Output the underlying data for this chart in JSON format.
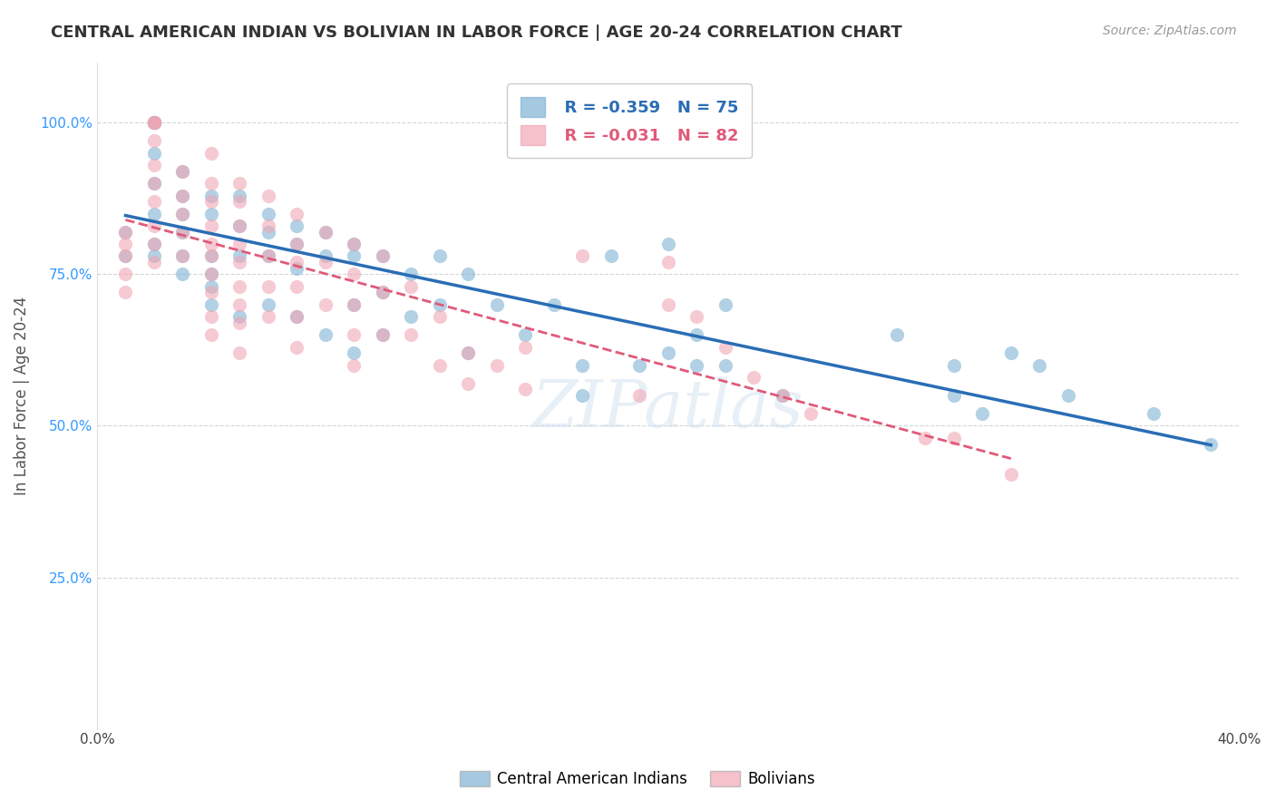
{
  "title": "CENTRAL AMERICAN INDIAN VS BOLIVIAN IN LABOR FORCE | AGE 20-24 CORRELATION CHART",
  "source": "Source: ZipAtlas.com",
  "xlabel": "",
  "ylabel": "In Labor Force | Age 20-24",
  "xlim": [
    0.0,
    0.4
  ],
  "ylim": [
    0.0,
    1.1
  ],
  "ytick_labels": [
    "",
    "25.0%",
    "50.0%",
    "75.0%",
    "100.0%"
  ],
  "ytick_values": [
    0.0,
    0.25,
    0.5,
    0.75,
    1.0
  ],
  "xtick_labels": [
    "0.0%",
    "",
    "",
    "",
    "",
    "40.0%"
  ],
  "xtick_values": [
    0.0,
    0.08,
    0.16,
    0.24,
    0.32,
    0.4
  ],
  "grid_color": "#cccccc",
  "background_color": "#ffffff",
  "blue_color": "#7fb3d3",
  "pink_color": "#f1a7b5",
  "blue_line_color": "#2a6db5",
  "pink_line_color": "#e05a7a",
  "legend_r_blue": "-0.359",
  "legend_n_blue": "75",
  "legend_r_pink": "-0.031",
  "legend_n_pink": "82",
  "watermark": "ZIPatlas",
  "blue_scatter_x": [
    0.01,
    0.01,
    0.02,
    0.02,
    0.02,
    0.02,
    0.02,
    0.02,
    0.02,
    0.02,
    0.02,
    0.02,
    0.03,
    0.03,
    0.03,
    0.03,
    0.03,
    0.03,
    0.04,
    0.04,
    0.04,
    0.04,
    0.04,
    0.04,
    0.05,
    0.05,
    0.05,
    0.05,
    0.06,
    0.06,
    0.06,
    0.06,
    0.07,
    0.07,
    0.07,
    0.07,
    0.08,
    0.08,
    0.08,
    0.09,
    0.09,
    0.09,
    0.09,
    0.1,
    0.1,
    0.1,
    0.11,
    0.11,
    0.12,
    0.12,
    0.13,
    0.13,
    0.14,
    0.15,
    0.16,
    0.17,
    0.17,
    0.18,
    0.19,
    0.2,
    0.2,
    0.21,
    0.21,
    0.22,
    0.22,
    0.24,
    0.28,
    0.3,
    0.3,
    0.31,
    0.32,
    0.33,
    0.34,
    0.37,
    0.39
  ],
  "blue_scatter_y": [
    0.78,
    0.82,
    1.0,
    1.0,
    1.0,
    1.0,
    1.0,
    0.95,
    0.9,
    0.85,
    0.8,
    0.78,
    0.92,
    0.88,
    0.85,
    0.82,
    0.78,
    0.75,
    0.88,
    0.85,
    0.78,
    0.75,
    0.73,
    0.7,
    0.88,
    0.83,
    0.78,
    0.68,
    0.85,
    0.82,
    0.78,
    0.7,
    0.83,
    0.8,
    0.76,
    0.68,
    0.82,
    0.78,
    0.65,
    0.8,
    0.78,
    0.7,
    0.62,
    0.78,
    0.72,
    0.65,
    0.75,
    0.68,
    0.78,
    0.7,
    0.75,
    0.62,
    0.7,
    0.65,
    0.7,
    0.6,
    0.55,
    0.78,
    0.6,
    0.8,
    0.62,
    0.65,
    0.6,
    0.7,
    0.6,
    0.55,
    0.65,
    0.55,
    0.6,
    0.52,
    0.62,
    0.6,
    0.55,
    0.52,
    0.47
  ],
  "pink_scatter_x": [
    0.01,
    0.01,
    0.01,
    0.01,
    0.01,
    0.02,
    0.02,
    0.02,
    0.02,
    0.02,
    0.02,
    0.02,
    0.02,
    0.02,
    0.02,
    0.03,
    0.03,
    0.03,
    0.03,
    0.03,
    0.04,
    0.04,
    0.04,
    0.04,
    0.04,
    0.04,
    0.04,
    0.04,
    0.04,
    0.04,
    0.05,
    0.05,
    0.05,
    0.05,
    0.05,
    0.05,
    0.05,
    0.05,
    0.05,
    0.06,
    0.06,
    0.06,
    0.06,
    0.06,
    0.07,
    0.07,
    0.07,
    0.07,
    0.07,
    0.07,
    0.08,
    0.08,
    0.08,
    0.09,
    0.09,
    0.09,
    0.09,
    0.09,
    0.1,
    0.1,
    0.1,
    0.11,
    0.11,
    0.12,
    0.12,
    0.13,
    0.13,
    0.14,
    0.15,
    0.15,
    0.17,
    0.19,
    0.2,
    0.2,
    0.21,
    0.22,
    0.23,
    0.24,
    0.25,
    0.29,
    0.3,
    0.32
  ],
  "pink_scatter_y": [
    0.82,
    0.8,
    0.78,
    0.75,
    0.72,
    1.0,
    1.0,
    1.0,
    0.97,
    0.93,
    0.9,
    0.87,
    0.83,
    0.8,
    0.77,
    0.92,
    0.88,
    0.85,
    0.82,
    0.78,
    0.95,
    0.9,
    0.87,
    0.83,
    0.8,
    0.78,
    0.75,
    0.72,
    0.68,
    0.65,
    0.9,
    0.87,
    0.83,
    0.8,
    0.77,
    0.73,
    0.7,
    0.67,
    0.62,
    0.88,
    0.83,
    0.78,
    0.73,
    0.68,
    0.85,
    0.8,
    0.77,
    0.73,
    0.68,
    0.63,
    0.82,
    0.77,
    0.7,
    0.8,
    0.75,
    0.7,
    0.65,
    0.6,
    0.78,
    0.72,
    0.65,
    0.73,
    0.65,
    0.68,
    0.6,
    0.62,
    0.57,
    0.6,
    0.63,
    0.56,
    0.78,
    0.55,
    0.77,
    0.7,
    0.68,
    0.63,
    0.58,
    0.55,
    0.52,
    0.48,
    0.48,
    0.42
  ]
}
